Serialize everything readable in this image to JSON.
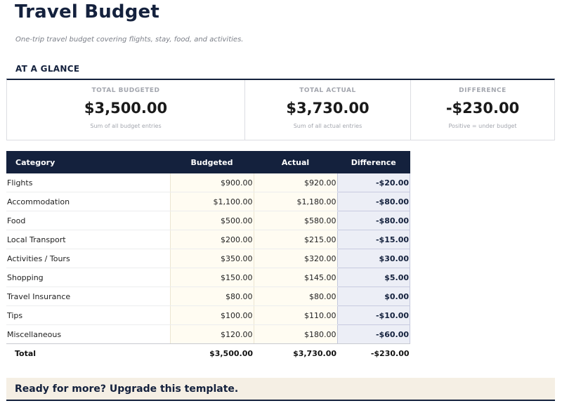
{
  "header": {
    "title": "Travel Budget",
    "subtitle": "One-trip travel budget covering flights, stay, food, and activities."
  },
  "glance": {
    "heading": "AT A GLANCE",
    "cards": [
      {
        "label": "TOTAL BUDGETED",
        "value": "$3,500.00",
        "note": "Sum of all budget entries"
      },
      {
        "label": "TOTAL ACTUAL",
        "value": "$3,730.00",
        "note": "Sum of all actual entries"
      },
      {
        "label": "DIFFERENCE",
        "value": "-$230.00",
        "note": "Positive = under budget"
      }
    ]
  },
  "table": {
    "columns": [
      "Category",
      "Budgeted",
      "Actual",
      "Difference"
    ],
    "rows": [
      {
        "category": "Flights",
        "budgeted": "$900.00",
        "actual": "$920.00",
        "difference": "-$20.00"
      },
      {
        "category": "Accommodation",
        "budgeted": "$1,100.00",
        "actual": "$1,180.00",
        "difference": "-$80.00"
      },
      {
        "category": "Food",
        "budgeted": "$500.00",
        "actual": "$580.00",
        "difference": "-$80.00"
      },
      {
        "category": "Local Transport",
        "budgeted": "$200.00",
        "actual": "$215.00",
        "difference": "-$15.00"
      },
      {
        "category": "Activities / Tours",
        "budgeted": "$350.00",
        "actual": "$320.00",
        "difference": "$30.00"
      },
      {
        "category": "Shopping",
        "budgeted": "$150.00",
        "actual": "$145.00",
        "difference": "$5.00"
      },
      {
        "category": "Travel Insurance",
        "budgeted": "$80.00",
        "actual": "$80.00",
        "difference": "$0.00"
      },
      {
        "category": "Tips",
        "budgeted": "$100.00",
        "actual": "$110.00",
        "difference": "-$10.00"
      },
      {
        "category": "Miscellaneous",
        "budgeted": "$120.00",
        "actual": "$180.00",
        "difference": "-$60.00"
      }
    ],
    "total": {
      "label": "Total",
      "budgeted": "$3,500.00",
      "actual": "$3,730.00",
      "difference": "-$230.00"
    }
  },
  "upgrade": {
    "text": "Ready for more? Upgrade this template."
  },
  "colors": {
    "navy": "#14213d",
    "budget_fill": "#fffcf2",
    "difference_fill": "#eceef6",
    "banner_fill": "#f5efe4"
  }
}
